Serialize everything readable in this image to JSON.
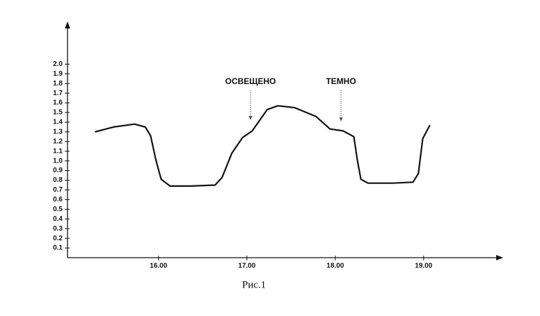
{
  "chart_data": {
    "type": "line",
    "x": [
      15.28,
      15.49,
      15.73,
      15.85,
      15.91,
      15.97,
      16.03,
      16.13,
      16.36,
      16.64,
      16.72,
      16.83,
      16.95,
      17.06,
      17.13,
      17.23,
      17.35,
      17.54,
      17.78,
      17.94,
      18.09,
      18.21,
      18.25,
      18.29,
      18.37,
      18.65,
      18.88,
      18.94,
      18.99,
      19.07
    ],
    "values": [
      1.3,
      1.35,
      1.38,
      1.35,
      1.26,
      1.01,
      0.81,
      0.74,
      0.74,
      0.75,
      0.83,
      1.08,
      1.24,
      1.31,
      1.4,
      1.53,
      1.57,
      1.55,
      1.46,
      1.33,
      1.31,
      1.25,
      1.01,
      0.81,
      0.77,
      0.77,
      0.78,
      0.87,
      1.23,
      1.37
    ],
    "color": "#111111",
    "xlim": [
      14.97,
      19.86
    ],
    "xticks": [
      {
        "value": 16,
        "label": "16.00"
      },
      {
        "value": 17,
        "label": "17.00"
      },
      {
        "value": 18,
        "label": "18.00"
      },
      {
        "value": 19,
        "label": "19.00"
      }
    ],
    "ylim": [
      0,
      2.39
    ],
    "yticks": [
      0.1,
      0.2,
      0.3,
      0.4,
      0.5,
      0.6,
      0.7,
      0.8,
      0.9,
      {
        "value": 1,
        "label": "1.0"
      },
      1.1,
      1.2,
      1.3,
      1.4,
      1.5,
      1.6,
      1.7,
      1.8,
      1.9,
      {
        "value": 2,
        "label": "2.0"
      }
    ],
    "annotations": [
      "ОСВЕЩЕНО",
      "ТЕМНО"
    ],
    "caption": "Рис.1",
    "grid": false
  }
}
